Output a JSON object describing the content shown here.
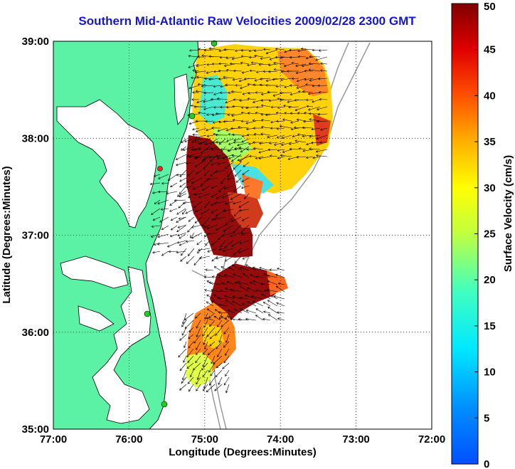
{
  "title": "Southern Mid-Atlantic Raw Velocities 2009/02/28 2300 GMT",
  "map": {
    "xlabel": "Longitude (Degrees:Minutes)",
    "ylabel": "Latitude (Degrees:Minutes)",
    "x_ticks": [
      "77:00",
      "76:00",
      "75:00",
      "74:00",
      "73:00",
      "72:00"
    ],
    "y_ticks": [
      "39:00",
      "38:00",
      "37:00",
      "36:00",
      "35:00"
    ],
    "lon_range": [
      -77,
      -72
    ],
    "lat_range": [
      35,
      39
    ],
    "grid": "dotted",
    "land_color": "#5cf2a6",
    "bathymetry_color": "#999999",
    "site_marker_color": "#22cc22",
    "alert_marker_color": "#ff2222"
  },
  "colorbar": {
    "label": "Surface Velocity (cm/s)",
    "ticks": [
      "0",
      "5",
      "10",
      "15",
      "20",
      "25",
      "30",
      "35",
      "40",
      "45",
      "50"
    ],
    "range": [
      0,
      50
    ],
    "colormap": "jet"
  }
}
